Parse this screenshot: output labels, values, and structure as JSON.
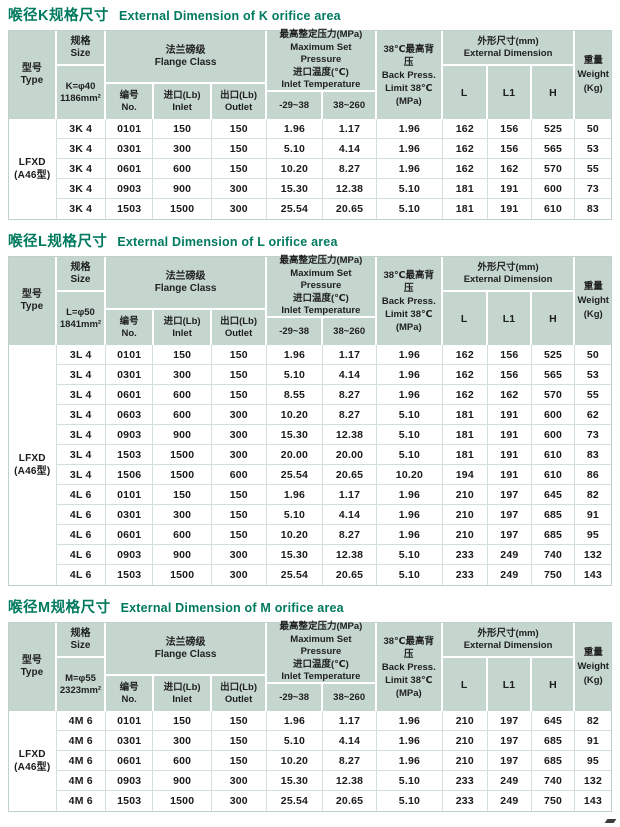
{
  "colors": {
    "title_teal": "#007a5f",
    "header_bg": "#c5d6cf",
    "grid_line": "#d2dfda",
    "body_text": "#1a1a1a"
  },
  "header_labels": {
    "type": "型号\nType",
    "size_top": "规格\nSize",
    "flange": "法兰磅级\nFlange  Class",
    "no": "编号\nNo.",
    "inlet": "进口(Lb)\nInlet",
    "outlet": "出口(Lb)\nOutlet",
    "pressure": "最高整定压力(MPa)\nMaximum Set Pressure\n进口温度(℃)\nInlet Temperature",
    "temp_low": "-29~38",
    "temp_high": "38~260",
    "back": "38℃最高背压\nBack Press.\nLimit 38℃\n(MPa)",
    "extdim": "外形尺寸(mm)\nExternal Dimension",
    "dim_l": "L",
    "dim_l1": "L1",
    "dim_h": "H",
    "weight": "重量\nWeight\n(Kg)"
  },
  "column_names": [
    "size-code",
    "flange-no",
    "flange-inlet",
    "flange-outlet",
    "pressure-neg29-38",
    "pressure-38-260",
    "back-pressure-limit",
    "dim-l",
    "dim-l1",
    "dim-h",
    "weight"
  ],
  "tables": [
    {
      "title_zh": "喉径K规格尺寸",
      "title_en": "External Dimension of K orifice area",
      "type_label": "LFXD\n(A46型)",
      "size_value": "K=φ40\n1186mm²",
      "rows": [
        [
          "3K 4",
          "0101",
          "150",
          "150",
          "1.96",
          "1.17",
          "1.96",
          "162",
          "156",
          "525",
          "50"
        ],
        [
          "3K 4",
          "0301",
          "300",
          "150",
          "5.10",
          "4.14",
          "1.96",
          "162",
          "156",
          "565",
          "53"
        ],
        [
          "3K 4",
          "0601",
          "600",
          "150",
          "10.20",
          "8.27",
          "1.96",
          "162",
          "162",
          "570",
          "55"
        ],
        [
          "3K 4",
          "0903",
          "900",
          "300",
          "15.30",
          "12.38",
          "5.10",
          "181",
          "191",
          "600",
          "73"
        ],
        [
          "3K 4",
          "1503",
          "1500",
          "300",
          "25.54",
          "20.65",
          "5.10",
          "181",
          "191",
          "610",
          "83"
        ]
      ]
    },
    {
      "title_zh": "喉径L规格尺寸",
      "title_en": "External Dimension of L orifice area",
      "type_label": "LFXD\n(A46型)",
      "size_value": "L=φ50\n1841mm²",
      "rows": [
        [
          "3L 4",
          "0101",
          "150",
          "150",
          "1.96",
          "1.17",
          "1.96",
          "162",
          "156",
          "525",
          "50"
        ],
        [
          "3L 4",
          "0301",
          "300",
          "150",
          "5.10",
          "4.14",
          "1.96",
          "162",
          "156",
          "565",
          "53"
        ],
        [
          "3L 4",
          "0601",
          "600",
          "150",
          "8.55",
          "8.27",
          "1.96",
          "162",
          "162",
          "570",
          "55"
        ],
        [
          "3L 4",
          "0603",
          "600",
          "300",
          "10.20",
          "8.27",
          "5.10",
          "181",
          "191",
          "600",
          "62"
        ],
        [
          "3L 4",
          "0903",
          "900",
          "300",
          "15.30",
          "12.38",
          "5.10",
          "181",
          "191",
          "600",
          "73"
        ],
        [
          "3L 4",
          "1503",
          "1500",
          "300",
          "20.00",
          "20.00",
          "5.10",
          "181",
          "191",
          "610",
          "83"
        ],
        [
          "3L 4",
          "1506",
          "1500",
          "600",
          "25.54",
          "20.65",
          "10.20",
          "194",
          "191",
          "610",
          "86"
        ],
        [
          "4L 6",
          "0101",
          "150",
          "150",
          "1.96",
          "1.17",
          "1.96",
          "210",
          "197",
          "645",
          "82"
        ],
        [
          "4L 6",
          "0301",
          "300",
          "150",
          "5.10",
          "4.14",
          "1.96",
          "210",
          "197",
          "685",
          "91"
        ],
        [
          "4L 6",
          "0601",
          "600",
          "150",
          "10.20",
          "8.27",
          "1.96",
          "210",
          "197",
          "685",
          "95"
        ],
        [
          "4L 6",
          "0903",
          "900",
          "300",
          "15.30",
          "12.38",
          "5.10",
          "233",
          "249",
          "740",
          "132"
        ],
        [
          "4L 6",
          "1503",
          "1500",
          "300",
          "25.54",
          "20.65",
          "5.10",
          "233",
          "249",
          "750",
          "143"
        ]
      ]
    },
    {
      "title_zh": "喉径M规格尺寸",
      "title_en": "External Dimension of M orifice area",
      "type_label": "LFXD\n(A46型)",
      "size_value": "M=φ55\n2323mm²",
      "rows": [
        [
          "4M 6",
          "0101",
          "150",
          "150",
          "1.96",
          "1.17",
          "1.96",
          "210",
          "197",
          "645",
          "82"
        ],
        [
          "4M 6",
          "0301",
          "300",
          "150",
          "5.10",
          "4.14",
          "1.96",
          "210",
          "197",
          "685",
          "91"
        ],
        [
          "4M 6",
          "0601",
          "600",
          "150",
          "10.20",
          "8.27",
          "1.96",
          "210",
          "197",
          "685",
          "95"
        ],
        [
          "4M 6",
          "0903",
          "900",
          "300",
          "15.30",
          "12.38",
          "5.10",
          "233",
          "249",
          "740",
          "132"
        ],
        [
          "4M 6",
          "1503",
          "1500",
          "300",
          "25.54",
          "20.65",
          "5.10",
          "233",
          "249",
          "750",
          "143"
        ]
      ]
    }
  ]
}
